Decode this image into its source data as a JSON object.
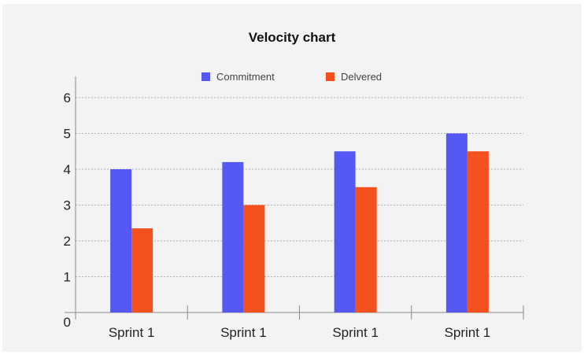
{
  "chart_data": {
    "type": "bar",
    "title": "Velocity chart",
    "xlabel": "",
    "ylabel": "",
    "categories": [
      "Sprint 1",
      "Sprint 1",
      "Sprint 1",
      "Sprint 1"
    ],
    "series": [
      {
        "name": "Commitment",
        "values": [
          4.0,
          4.2,
          4.5,
          5.0
        ],
        "color": "#5558f2"
      },
      {
        "name": "Delvered",
        "values": [
          2.35,
          3.0,
          3.5,
          4.5
        ],
        "color": "#f4511e"
      }
    ],
    "ylim": [
      0,
      6
    ],
    "yticks": [
      "0",
      "1",
      "2",
      "3",
      "4",
      "5",
      "6"
    ],
    "grid": true,
    "legend_position": "top-center"
  }
}
